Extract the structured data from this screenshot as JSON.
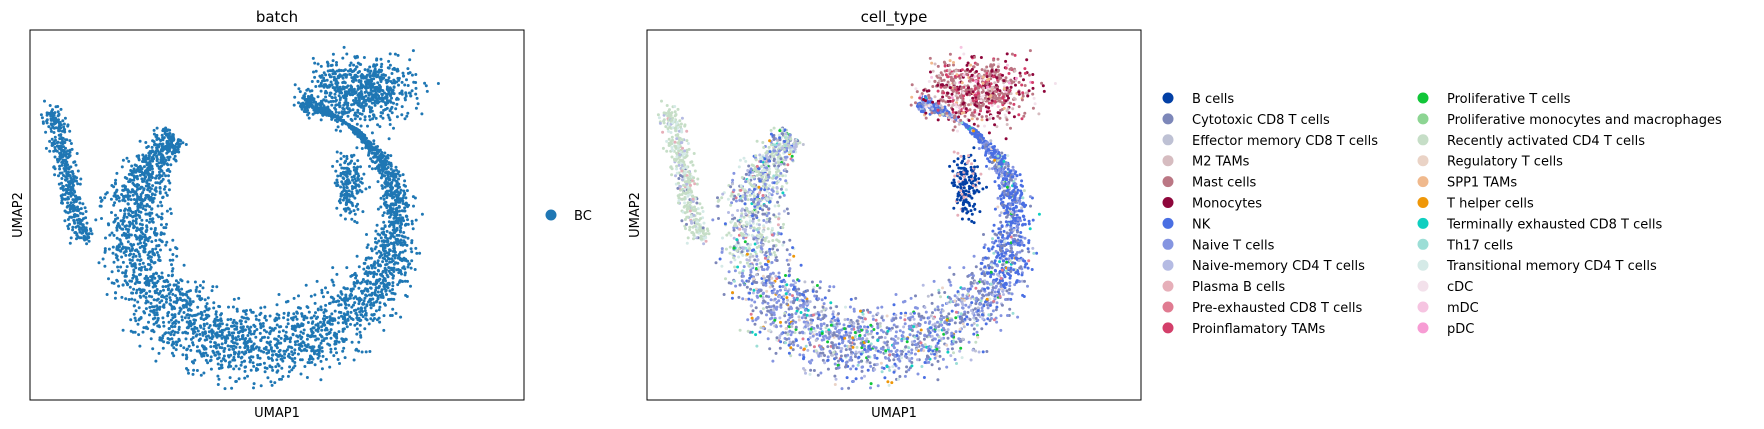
{
  "chart_data": [
    {
      "type": "scatter",
      "title": "batch",
      "xlabel": "UMAP1",
      "ylabel": "UMAP2",
      "grid": false,
      "ticks": "none",
      "legend_placement": "right",
      "color_by": "batch",
      "series": [
        {
          "name": "BC",
          "color": "#1f77b4",
          "color_key": "blue"
        }
      ]
    },
    {
      "type": "scatter",
      "title": "cell_type",
      "xlabel": "UMAP1",
      "ylabel": "UMAP2",
      "grid": false,
      "ticks": "none",
      "legend_placement": "right",
      "legend_columns": 2,
      "color_by": "cell_type",
      "series": [
        {
          "name": "B cells",
          "color": "#023fa5"
        },
        {
          "name": "Cytotoxic CD8 T cells",
          "color": "#7d87b9"
        },
        {
          "name": "Effector memory CD8 T cells",
          "color": "#bec1d4"
        },
        {
          "name": "M2 TAMs",
          "color": "#d6bcc0"
        },
        {
          "name": "Mast cells",
          "color": "#bb7784"
        },
        {
          "name": "Monocytes",
          "color": "#8e063b"
        },
        {
          "name": "NK",
          "color": "#4a6fe3"
        },
        {
          "name": "Naive T cells",
          "color": "#8595e1"
        },
        {
          "name": "Naive-memory CD4 T cells",
          "color": "#b5bbe3"
        },
        {
          "name": "Plasma B cells",
          "color": "#e6afb9"
        },
        {
          "name": "Pre-exhausted CD8 T cells",
          "color": "#e07b91"
        },
        {
          "name": "Proinflamatory TAMs",
          "color": "#d33f6a"
        },
        {
          "name": "Proliferative T cells",
          "color": "#11c638"
        },
        {
          "name": "Proliferative monocytes and macrophages",
          "color": "#8dd593"
        },
        {
          "name": "Recently activated CD4 T cells",
          "color": "#c6dec7"
        },
        {
          "name": "Regulatory T cells",
          "color": "#ead3c6"
        },
        {
          "name": "SPP1 TAMs",
          "color": "#f0b98d"
        },
        {
          "name": "T helper cells",
          "color": "#ef9708"
        },
        {
          "name": "Terminally exhausted CD8 T cells",
          "color": "#0fcfc0"
        },
        {
          "name": "Th17 cells",
          "color": "#9cded6"
        },
        {
          "name": "Transitional memory CD4 T cells",
          "color": "#d5eae7"
        },
        {
          "name": "cDC",
          "color": "#f3e1eb"
        },
        {
          "name": "mDC",
          "color": "#f6c4e1"
        },
        {
          "name": "pDC",
          "color": "#f79cd4"
        }
      ]
    }
  ]
}
